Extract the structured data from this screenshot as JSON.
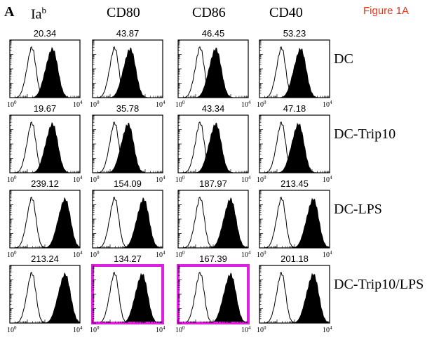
{
  "panel_letter": "A",
  "figure_title": "Figure 1A",
  "highlight_color": "#e020e0",
  "chart_data": {
    "type": "histogram-grid",
    "columns": [
      {
        "main": "Ia",
        "sup": "b"
      },
      {
        "main": "CD80",
        "sup": ""
      },
      {
        "main": "CD86",
        "sup": ""
      },
      {
        "main": "CD40",
        "sup": ""
      }
    ],
    "rows": [
      "DC",
      "DC-Trip10",
      "DC-LPS",
      "DC-Trip10/LPS"
    ],
    "x_axis": {
      "scale": "log",
      "min_label": "10",
      "min_exp": "0",
      "max_label": "10",
      "max_exp": "4"
    },
    "values": [
      [
        "20.34",
        "43.87",
        "46.45",
        "53.23"
      ],
      [
        "19.67",
        "35.78",
        "43.34",
        "47.18"
      ],
      [
        "239.12",
        "154.09",
        "187.97",
        "213.45"
      ],
      [
        "213.24",
        "134.27",
        "167.39",
        "201.18"
      ]
    ],
    "filled_peak_position": [
      [
        0.62,
        0.55,
        0.55,
        0.6
      ],
      [
        0.62,
        0.52,
        0.55,
        0.57
      ],
      [
        0.8,
        0.74,
        0.76,
        0.78
      ],
      [
        0.8,
        0.72,
        0.76,
        0.78
      ]
    ],
    "open_peak_position": [
      0.32,
      0.32,
      0.32,
      0.32
    ],
    "highlighted": [
      [
        3,
        1
      ],
      [
        3,
        2
      ]
    ]
  }
}
